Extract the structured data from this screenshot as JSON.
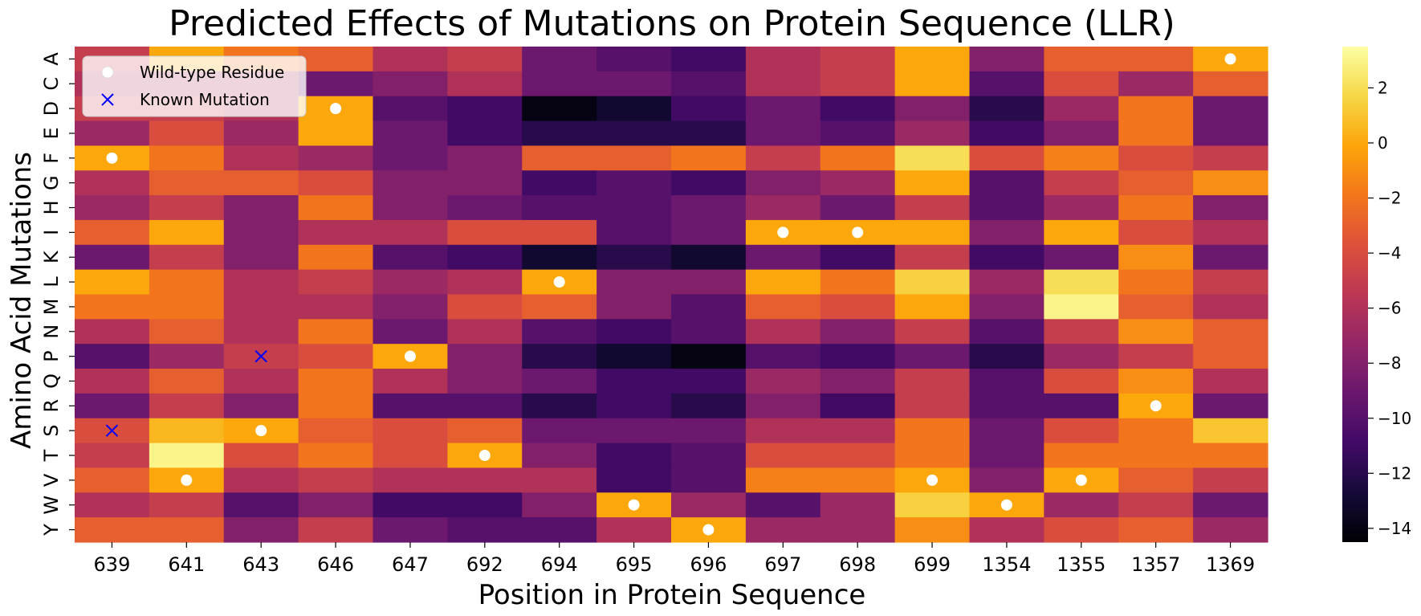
{
  "chart_data": {
    "type": "heatmap",
    "title": "Predicted Effects of Mutations on Protein Sequence (LLR)",
    "xlabel": "Position in Protein Sequence",
    "ylabel": "Amino Acid Mutations",
    "x": [
      "639",
      "641",
      "643",
      "646",
      "647",
      "692",
      "694",
      "695",
      "696",
      "697",
      "698",
      "699",
      "1354",
      "1355",
      "1357",
      "1369"
    ],
    "y": [
      "A",
      "C",
      "D",
      "E",
      "F",
      "G",
      "H",
      "I",
      "K",
      "L",
      "M",
      "N",
      "P",
      "Q",
      "R",
      "S",
      "T",
      "V",
      "W",
      "Y"
    ],
    "values": [
      [
        -5.0,
        0.0,
        -2.0,
        -3.0,
        -6.0,
        -5.0,
        -9.0,
        -10.0,
        -11.0,
        -6.0,
        -5.0,
        0.0,
        -8.0,
        -3.0,
        -3.0,
        0.0
      ],
      [
        -6.0,
        -6.0,
        -6.0,
        -9.0,
        -8.0,
        -6.0,
        -9.0,
        -9.0,
        -10.0,
        -6.0,
        -5.0,
        0.0,
        -10.0,
        -4.0,
        -7.0,
        -3.0
      ],
      [
        -5.0,
        -5.0,
        -6.0,
        0.0,
        -10.0,
        -11.0,
        -14.0,
        -13.0,
        -11.0,
        -9.0,
        -11.0,
        -8.0,
        -12.0,
        -7.0,
        -2.0,
        -9.0
      ],
      [
        -7.0,
        -4.0,
        -7.0,
        0.0,
        -9.0,
        -11.0,
        -12.0,
        -12.0,
        -12.0,
        -9.0,
        -10.0,
        -7.0,
        -11.0,
        -8.0,
        -2.0,
        -9.0
      ],
      [
        0.0,
        -2.0,
        -6.0,
        -7.0,
        -9.0,
        -8.0,
        -3.0,
        -3.0,
        -2.0,
        -5.0,
        -2.0,
        2.0,
        -4.0,
        -1.5,
        -4.0,
        -5.0
      ],
      [
        -6.0,
        -3.0,
        -3.0,
        -4.0,
        -8.0,
        -8.0,
        -11.0,
        -10.0,
        -11.0,
        -8.0,
        -7.0,
        0.0,
        -10.0,
        -5.0,
        -3.0,
        -1.0
      ],
      [
        -7.0,
        -5.0,
        -8.0,
        -2.0,
        -8.0,
        -9.0,
        -10.0,
        -10.0,
        -9.0,
        -7.0,
        -9.0,
        -5.0,
        -10.0,
        -7.0,
        -2.0,
        -8.0
      ],
      [
        -3.0,
        0.0,
        -8.0,
        -6.0,
        -6.0,
        -4.0,
        -4.0,
        -10.0,
        -9.0,
        0.0,
        0.0,
        0.0,
        -8.0,
        0.0,
        -4.0,
        -6.0
      ],
      [
        -9.0,
        -5.0,
        -8.0,
        -2.0,
        -10.0,
        -11.0,
        -13.0,
        -12.0,
        -13.0,
        -9.0,
        -11.0,
        -5.0,
        -11.0,
        -9.0,
        -1.0,
        -9.0
      ],
      [
        0.0,
        -2.0,
        -6.0,
        -5.0,
        -7.0,
        -6.0,
        0.0,
        -8.0,
        -8.0,
        0.0,
        -2.0,
        1.5,
        -7.0,
        2.0,
        -2.0,
        -5.0
      ],
      [
        -2.0,
        -2.0,
        -6.0,
        -6.0,
        -8.0,
        -4.0,
        -3.0,
        -8.0,
        -10.0,
        -3.0,
        -4.0,
        0.0,
        -8.0,
        3.0,
        -3.0,
        -6.0
      ],
      [
        -6.0,
        -3.0,
        -6.0,
        -2.0,
        -9.0,
        -6.0,
        -10.0,
        -11.0,
        -10.0,
        -6.0,
        -8.0,
        -5.0,
        -10.0,
        -5.0,
        -1.0,
        -3.0
      ],
      [
        -10.0,
        -7.0,
        -5.0,
        -4.0,
        0.0,
        -8.0,
        -12.0,
        -13.0,
        -14.0,
        -10.0,
        -11.0,
        -9.0,
        -12.0,
        -7.0,
        -5.0,
        -3.0
      ],
      [
        -6.0,
        -3.0,
        -6.0,
        -2.0,
        -6.0,
        -8.0,
        -9.0,
        -11.0,
        -11.0,
        -7.0,
        -8.0,
        -5.0,
        -10.0,
        -4.0,
        -1.0,
        -6.0
      ],
      [
        -9.0,
        -5.0,
        -8.0,
        -2.0,
        -10.0,
        -10.0,
        -12.0,
        -11.0,
        -12.0,
        -8.0,
        -11.0,
        -5.0,
        -10.0,
        -10.0,
        0.0,
        -9.0
      ],
      [
        -4.0,
        0.5,
        0.0,
        -3.0,
        -4.0,
        -3.0,
        -9.0,
        -9.0,
        -9.0,
        -6.0,
        -6.0,
        -2.0,
        -9.0,
        -4.0,
        -2.0,
        1.0
      ],
      [
        -5.0,
        3.0,
        -4.0,
        -2.0,
        -4.0,
        0.0,
        -8.0,
        -11.0,
        -10.0,
        -4.0,
        -4.0,
        -2.0,
        -9.0,
        -2.0,
        -2.0,
        -2.0
      ],
      [
        -3.0,
        0.0,
        -6.0,
        -5.0,
        -6.0,
        -6.0,
        -6.0,
        -11.0,
        -10.0,
        -1.5,
        -1.5,
        0.0,
        -8.0,
        0.0,
        -3.0,
        -5.0
      ],
      [
        -6.0,
        -5.0,
        -10.0,
        -8.0,
        -11.0,
        -11.0,
        -8.0,
        0.0,
        -7.0,
        -10.0,
        -7.0,
        1.5,
        0.0,
        -7.0,
        -5.0,
        -9.0
      ],
      [
        -3.0,
        -3.0,
        -8.0,
        -5.0,
        -9.0,
        -10.0,
        -10.0,
        -6.0,
        0.0,
        -7.0,
        -7.0,
        -1.0,
        -6.0,
        -4.0,
        -3.0,
        -7.0
      ]
    ],
    "wild_type_points": [
      {
        "x": "639",
        "y": "F"
      },
      {
        "x": "641",
        "y": "V"
      },
      {
        "x": "643",
        "y": "S"
      },
      {
        "x": "646",
        "y": "D"
      },
      {
        "x": "647",
        "y": "P"
      },
      {
        "x": "692",
        "y": "T"
      },
      {
        "x": "694",
        "y": "L"
      },
      {
        "x": "695",
        "y": "W"
      },
      {
        "x": "696",
        "y": "Y"
      },
      {
        "x": "697",
        "y": "I"
      },
      {
        "x": "698",
        "y": "I"
      },
      {
        "x": "699",
        "y": "V"
      },
      {
        "x": "1354",
        "y": "W"
      },
      {
        "x": "1355",
        "y": "V"
      },
      {
        "x": "1357",
        "y": "R"
      },
      {
        "x": "1369",
        "y": "A"
      }
    ],
    "known_mutation_points": [
      {
        "x": "639",
        "y": "S"
      },
      {
        "x": "643",
        "y": "P"
      }
    ],
    "legend": {
      "placement": "top-left",
      "items": [
        {
          "label": "Wild-type Residue",
          "marker": "circle",
          "color": "#ffffff"
        },
        {
          "label": "Known Mutation",
          "marker": "x",
          "color": "#0000ff"
        }
      ]
    },
    "colorbar": {
      "colormap": "inferno",
      "range": [
        -14.5,
        3.5
      ],
      "ticks": [
        2,
        0,
        -2,
        -4,
        -6,
        -8,
        -10,
        -12,
        -14
      ],
      "tick_labels": [
        "2",
        "0",
        "−2",
        "−4",
        "−6",
        "−8",
        "−10",
        "−12",
        "−14"
      ]
    }
  }
}
